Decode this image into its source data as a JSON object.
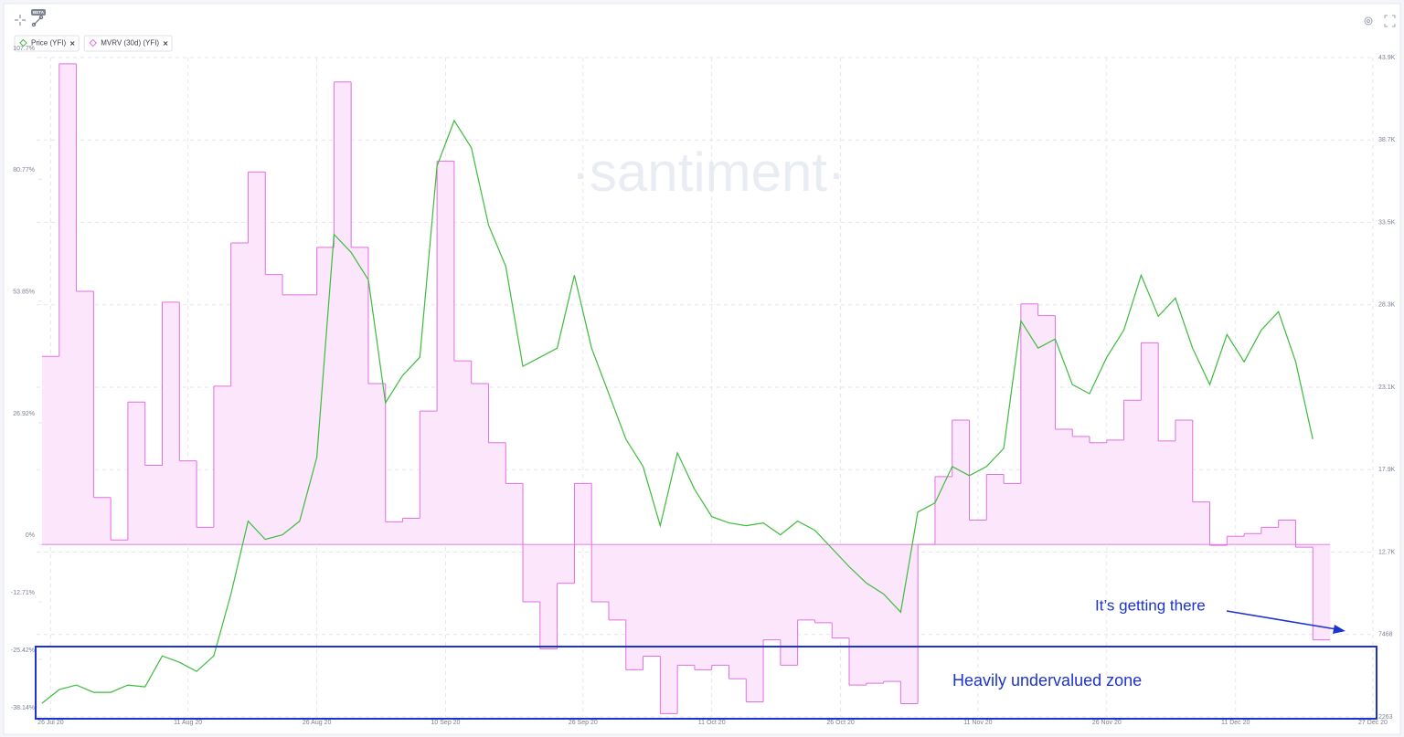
{
  "chart_data": {
    "type": "line",
    "badge": "BETA",
    "watermark": "·santiment·",
    "annotations": [
      {
        "text": "It’s getting there"
      },
      {
        "text": "Heavily undervalued zone"
      }
    ],
    "grid": true,
    "x": [
      "2020-07-25",
      "2020-07-27",
      "2020-07-29",
      "2020-07-31",
      "2020-08-02",
      "2020-08-04",
      "2020-08-06",
      "2020-08-08",
      "2020-08-10",
      "2020-08-12",
      "2020-08-14",
      "2020-08-16",
      "2020-08-18",
      "2020-08-20",
      "2020-08-22",
      "2020-08-24",
      "2020-08-26",
      "2020-08-28",
      "2020-08-30",
      "2020-09-01",
      "2020-09-03",
      "2020-09-05",
      "2020-09-07",
      "2020-09-09",
      "2020-09-11",
      "2020-09-13",
      "2020-09-15",
      "2020-09-17",
      "2020-09-19",
      "2020-09-21",
      "2020-09-23",
      "2020-09-25",
      "2020-09-27",
      "2020-09-29",
      "2020-10-01",
      "2020-10-03",
      "2020-10-05",
      "2020-10-07",
      "2020-10-09",
      "2020-10-11",
      "2020-10-13",
      "2020-10-15",
      "2020-10-17",
      "2020-10-19",
      "2020-10-21",
      "2020-10-23",
      "2020-10-25",
      "2020-10-27",
      "2020-10-29",
      "2020-10-31",
      "2020-11-02",
      "2020-11-04",
      "2020-11-06",
      "2020-11-08",
      "2020-11-10",
      "2020-11-12",
      "2020-11-14",
      "2020-11-16",
      "2020-11-18",
      "2020-11-20",
      "2020-11-22",
      "2020-11-24",
      "2020-11-26",
      "2020-11-28",
      "2020-11-30",
      "2020-12-02",
      "2020-12-04",
      "2020-12-06",
      "2020-12-08",
      "2020-12-10",
      "2020-12-12",
      "2020-12-14",
      "2020-12-16",
      "2020-12-18",
      "2020-12-20"
    ],
    "xlim": [
      "2020-07-25",
      "2020-12-27"
    ],
    "xticks": [
      {
        "value": "2020-07-26",
        "label": "26 Jul 20"
      },
      {
        "value": "2020-08-11",
        "label": "11 Aug 20"
      },
      {
        "value": "2020-08-26",
        "label": "26 Aug 20"
      },
      {
        "value": "2020-09-10",
        "label": "10 Sep 20"
      },
      {
        "value": "2020-09-26",
        "label": "26 Sep 20"
      },
      {
        "value": "2020-10-11",
        "label": "11 Oct 20"
      },
      {
        "value": "2020-10-26",
        "label": "26 Oct 20"
      },
      {
        "value": "2020-11-11",
        "label": "11 Nov 20"
      },
      {
        "value": "2020-11-26",
        "label": "26 Nov 20"
      },
      {
        "value": "2020-12-11",
        "label": "11 Dec 20"
      },
      {
        "value": "2020-12-27",
        "label": "27 Dec 20"
      }
    ],
    "ylim": [
      -38.14,
      107.7
    ],
    "yticks": [
      {
        "value": -38.14,
        "label": "-38.14%"
      },
      {
        "value": -25.42,
        "label": "-25.42%"
      },
      {
        "value": -12.71,
        "label": "-12.71%"
      },
      {
        "value": 0,
        "label": "0%"
      },
      {
        "value": 26.92,
        "label": "26.92%"
      },
      {
        "value": 53.85,
        "label": "53.85%"
      },
      {
        "value": 80.77,
        "label": "80.77%"
      },
      {
        "value": 107.7,
        "label": "107.7%"
      }
    ],
    "y2lim": [
      2263,
      43903
    ],
    "y2ticks": [
      2263,
      7468,
      {
        "value": 12673,
        "label": "12.7K"
      },
      {
        "value": 17878,
        "label": "17.9K"
      },
      {
        "value": 23083,
        "label": "23.1K"
      },
      {
        "value": 28288,
        "label": "28.3K"
      },
      {
        "value": 33493,
        "label": "33.5K"
      },
      {
        "value": 38698,
        "label": "38.7K"
      },
      {
        "value": 43903,
        "label": "43.9K"
      }
    ],
    "series": [
      {
        "name": "MVRV (30d) (YFI)",
        "type": "area",
        "color": "#e26fe0",
        "fill": "#fbe6fb",
        "axis": "y",
        "values": [
          41.6,
          106.3,
          56,
          10.4,
          1,
          31.5,
          17.5,
          53.6,
          18.5,
          3.8,
          35,
          66.7,
          82.4,
          59.7,
          55.2,
          55.2,
          65.7,
          102.3,
          65.7,
          35.6,
          5,
          5.8,
          29.5,
          84.8,
          40.6,
          35.6,
          22.5,
          13.5,
          -12.7,
          -23.1,
          -8.6,
          13.5,
          -12.7,
          -16.7,
          -27.7,
          -24.7,
          -37.4,
          -26.7,
          -27.7,
          -26.7,
          -29.7,
          -34.8,
          -21.1,
          -26.7,
          -16.7,
          -17.3,
          -20.7,
          -31.1,
          -30.7,
          -30.3,
          -35.2,
          0,
          15,
          27.5,
          5.4,
          15.5,
          13.5,
          53.2,
          50.6,
          25.5,
          23.9,
          22.5,
          23.1,
          31.9,
          44.6,
          22.9,
          27.5,
          9.4,
          -0.2,
          1.8,
          2.4,
          3.8,
          5.4,
          -0.6,
          -21.1
        ]
      },
      {
        "name": "Price (YFI)",
        "type": "line",
        "color": "#3dbb3d",
        "axis": "y2",
        "values": [
          3126,
          3988,
          4275,
          3816,
          3816,
          4275,
          4160,
          6116,
          5713,
          5138,
          6116,
          10026,
          14626,
          13476,
          13763,
          14626,
          18651,
          32738,
          31588,
          29863,
          22101,
          23826,
          24976,
          37051,
          39926,
          38201,
          33313,
          30726,
          24401,
          24976,
          25551,
          30151,
          25551,
          22676,
          19801,
          18076,
          14338,
          18938,
          16638,
          14913,
          14511,
          14338,
          14511,
          13763,
          14626,
          14051,
          12901,
          11751,
          10716,
          10026,
          8876,
          15201,
          15776,
          18076,
          17501,
          18076,
          19226,
          27276,
          25551,
          26126,
          23251,
          22676,
          24976,
          26701,
          30151,
          27563,
          28713,
          25551,
          23251,
          26413,
          24688,
          26701,
          27851,
          24688,
          19801
        ]
      }
    ]
  }
}
